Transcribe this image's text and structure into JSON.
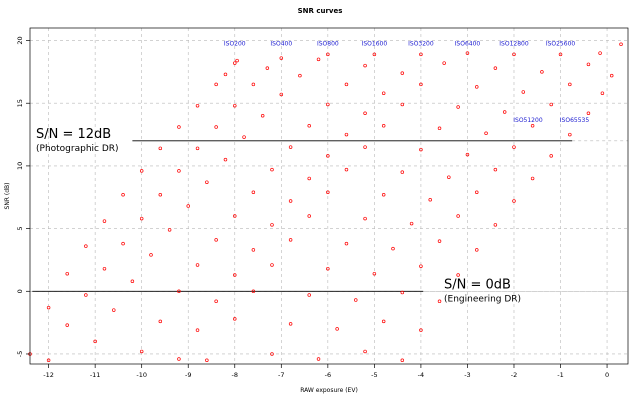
{
  "chart_data": {
    "type": "scatter",
    "title": "SNR curves",
    "xlabel": "RAW exposure (EV)",
    "ylabel": "SNR (dB)",
    "xlim": [
      -12.4,
      0.45
    ],
    "ylim": [
      -5.8,
      21
    ],
    "x_ticks": [
      -12,
      -11,
      -10,
      -9,
      -8,
      -7,
      -6,
      -5,
      -4,
      -3,
      -2,
      -1,
      0
    ],
    "x_tick_labels": [
      "-12",
      "-11",
      "-10",
      "-9",
      "-8",
      "-7",
      "-6",
      "-5",
      "-4",
      "-3",
      "-2",
      "-1",
      "0"
    ],
    "y_ticks": [
      -5,
      0,
      5,
      10,
      15,
      20
    ],
    "y_tick_labels": [
      "-5",
      "0",
      "5",
      "10",
      "15",
      "20"
    ],
    "grid": true,
    "marker_color": "#ff0000",
    "label_color": "#1a1ad0",
    "series": [
      {
        "name": "ISO200",
        "label_x": -8.0,
        "label_y": 19.6,
        "points": [
          [
            -12.4,
            -5
          ],
          [
            -12.0,
            -1.3
          ],
          [
            -11.6,
            1.4
          ],
          [
            -11.2,
            3.6
          ],
          [
            -10.8,
            5.6
          ],
          [
            -10.4,
            7.7
          ],
          [
            -10.0,
            9.6
          ],
          [
            -9.6,
            11.4
          ],
          [
            -9.2,
            13.1
          ],
          [
            -8.8,
            14.8
          ],
          [
            -8.4,
            16.5
          ],
          [
            -8.2,
            17.3
          ],
          [
            -8.0,
            18.2
          ],
          [
            -7.95,
            18.4
          ]
        ]
      },
      {
        "name": "ISO400",
        "label_x": -7.0,
        "label_y": 19.6,
        "points": [
          [
            -12.0,
            -5.5
          ],
          [
            -11.6,
            -2.7
          ],
          [
            -11.2,
            -0.3
          ],
          [
            -10.8,
            1.8
          ],
          [
            -10.4,
            3.8
          ],
          [
            -10.0,
            5.8
          ],
          [
            -9.6,
            7.7
          ],
          [
            -9.2,
            9.6
          ],
          [
            -8.8,
            11.4
          ],
          [
            -8.4,
            13.1
          ],
          [
            -8.0,
            14.8
          ],
          [
            -7.6,
            16.5
          ],
          [
            -7.3,
            17.8
          ],
          [
            -7.0,
            18.6
          ]
        ]
      },
      {
        "name": "ISO800",
        "label_x": -6.0,
        "label_y": 19.6,
        "points": [
          [
            -11.0,
            -4
          ],
          [
            -10.6,
            -1.5
          ],
          [
            -10.2,
            0.8
          ],
          [
            -9.8,
            2.9
          ],
          [
            -9.4,
            4.9
          ],
          [
            -9.0,
            6.8
          ],
          [
            -8.6,
            8.7
          ],
          [
            -8.2,
            10.5
          ],
          [
            -7.8,
            12.3
          ],
          [
            -7.4,
            14.0
          ],
          [
            -7.0,
            15.7
          ],
          [
            -6.6,
            17.2
          ],
          [
            -6.2,
            18.5
          ],
          [
            -6.0,
            18.9
          ]
        ]
      },
      {
        "name": "ISO1600",
        "label_x": -5.0,
        "label_y": 19.6,
        "points": [
          [
            -10.0,
            -4.8
          ],
          [
            -9.6,
            -2.4
          ],
          [
            -9.2,
            0
          ],
          [
            -8.8,
            2.1
          ],
          [
            -8.4,
            4.1
          ],
          [
            -8.0,
            6.0
          ],
          [
            -7.6,
            7.9
          ],
          [
            -7.2,
            9.7
          ],
          [
            -6.8,
            11.5
          ],
          [
            -6.4,
            13.2
          ],
          [
            -6.0,
            14.9
          ],
          [
            -5.6,
            16.5
          ],
          [
            -5.2,
            18.0
          ],
          [
            -5.0,
            18.9
          ]
        ]
      },
      {
        "name": "ISO3200",
        "label_x": -4.0,
        "label_y": 19.6,
        "points": [
          [
            -9.2,
            -5.4
          ],
          [
            -8.8,
            -3.1
          ],
          [
            -8.4,
            -0.8
          ],
          [
            -8.0,
            1.3
          ],
          [
            -7.6,
            3.3
          ],
          [
            -7.2,
            5.3
          ],
          [
            -6.8,
            7.2
          ],
          [
            -6.4,
            9.0
          ],
          [
            -6.0,
            10.8
          ],
          [
            -5.6,
            12.5
          ],
          [
            -5.2,
            14.2
          ],
          [
            -4.8,
            15.8
          ],
          [
            -4.4,
            17.4
          ],
          [
            -4.0,
            18.9
          ]
        ]
      },
      {
        "name": "ISO6400",
        "label_x": -3.0,
        "label_y": 19.6,
        "points": [
          [
            -8.6,
            -5.5
          ],
          [
            -8.0,
            -2.2
          ],
          [
            -7.6,
            0
          ],
          [
            -7.2,
            2.1
          ],
          [
            -6.8,
            4.1
          ],
          [
            -6.4,
            6.0
          ],
          [
            -6.0,
            7.9
          ],
          [
            -5.6,
            9.7
          ],
          [
            -5.2,
            11.5
          ],
          [
            -4.8,
            13.2
          ],
          [
            -4.4,
            14.9
          ],
          [
            -4.0,
            16.5
          ],
          [
            -3.5,
            18.2
          ],
          [
            -3.0,
            19.0
          ]
        ]
      },
      {
        "name": "ISO12800",
        "label_x": -2.0,
        "label_y": 19.6,
        "points": [
          [
            -7.2,
            -5
          ],
          [
            -6.8,
            -2.6
          ],
          [
            -6.4,
            -0.3
          ],
          [
            -6.0,
            1.8
          ],
          [
            -5.6,
            3.8
          ],
          [
            -5.2,
            5.8
          ],
          [
            -4.8,
            7.7
          ],
          [
            -4.4,
            9.5
          ],
          [
            -4.0,
            11.3
          ],
          [
            -3.6,
            13.0
          ],
          [
            -3.2,
            14.7
          ],
          [
            -2.8,
            16.3
          ],
          [
            -2.4,
            17.8
          ],
          [
            -2.0,
            18.9
          ]
        ]
      },
      {
        "name": "ISO25600",
        "label_x": -1.0,
        "label_y": 19.6,
        "points": [
          [
            -6.2,
            -5.4
          ],
          [
            -5.8,
            -3.0
          ],
          [
            -5.4,
            -0.7
          ],
          [
            -5.0,
            1.4
          ],
          [
            -4.6,
            3.4
          ],
          [
            -4.2,
            5.4
          ],
          [
            -3.8,
            7.3
          ],
          [
            -3.4,
            9.1
          ],
          [
            -3.0,
            10.9
          ],
          [
            -2.6,
            12.6
          ],
          [
            -2.2,
            14.3
          ],
          [
            -1.8,
            15.9
          ],
          [
            -1.4,
            17.5
          ],
          [
            -1.0,
            18.9
          ]
        ]
      },
      {
        "name": "ISO51200",
        "label_x": -1.7,
        "label_y": 13.5,
        "points": [
          [
            -5.2,
            -4.8
          ],
          [
            -4.8,
            -2.4
          ],
          [
            -4.4,
            -0.1
          ],
          [
            -4.0,
            2.0
          ],
          [
            -3.6,
            4.0
          ],
          [
            -3.2,
            6.0
          ],
          [
            -2.8,
            7.9
          ],
          [
            -2.4,
            9.7
          ],
          [
            -2.0,
            11.5
          ],
          [
            -1.6,
            13.2
          ],
          [
            -1.2,
            14.9
          ],
          [
            -0.8,
            16.5
          ],
          [
            -0.4,
            18.1
          ],
          [
            -0.15,
            19.0
          ]
        ]
      },
      {
        "name": "ISO65535",
        "label_x": -0.7,
        "label_y": 13.5,
        "points": [
          [
            -4.4,
            -5.5
          ],
          [
            -4.0,
            -3.1
          ],
          [
            -3.6,
            -0.8
          ],
          [
            -3.2,
            1.3
          ],
          [
            -2.8,
            3.3
          ],
          [
            -2.4,
            5.3
          ],
          [
            -2.0,
            7.2
          ],
          [
            -1.6,
            9.0
          ],
          [
            -1.2,
            10.8
          ],
          [
            -0.8,
            12.5
          ],
          [
            -0.4,
            14.2
          ],
          [
            -0.1,
            15.8
          ],
          [
            0.1,
            17.2
          ],
          [
            0.3,
            19.7
          ]
        ]
      }
    ],
    "annotations": [
      {
        "text": "S/N = 12dB",
        "sub": "(Photographic DR)",
        "y": 12,
        "x_from": -10.2,
        "x_to": -0.75
      },
      {
        "text": "S/N = 0dB",
        "sub": "(Engineering DR)",
        "y": 0,
        "x_from": -12.35,
        "x_to": -3.95
      }
    ]
  }
}
